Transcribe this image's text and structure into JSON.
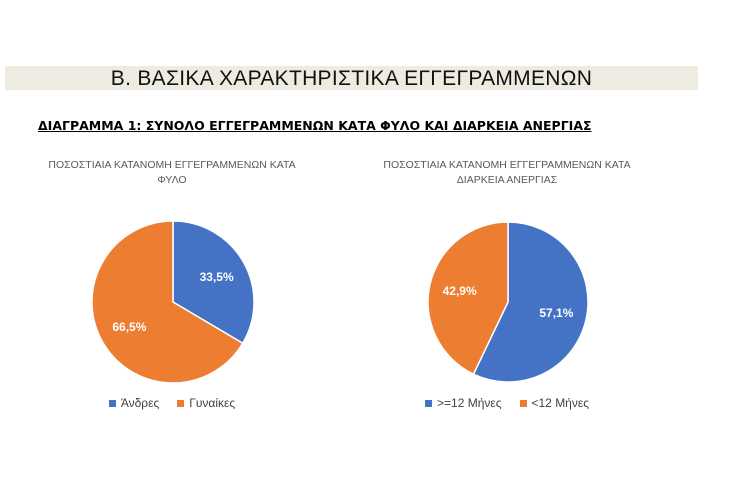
{
  "header": {
    "section_title": "Β.  ΒΑΣΙΚΑ ΧΑΡΑΚΤΗΡΙΣΤΙΚΑ ΕΓΓΕΓΡΑΜΜΕΝΩΝ",
    "diagram_heading": "ΔΙΑΓΡΑΜΜΑ 1: ΣΥΝΟΛΟ ΕΓΓΕΓΡΑΜΜΕΝΩΝ ΚΑΤΑ ΦΥΛΟ ΚΑΙ ΔΙΑΡΚΕΙΑ ΑΝΕΡΓΙΑΣ"
  },
  "chart_data": [
    {
      "type": "pie",
      "title_lines": [
        "ΠΟΣΟΣΤΙΑΙΑ ΚΑΤΑΝΟΜΗ ΕΓΓΕΓΡΑΜΜΕΝΩΝ ΚΑΤΑ",
        "ΦΥΛΟ"
      ],
      "categories": [
        "Άνδρες",
        "Γυναίκες"
      ],
      "values": [
        33.5,
        66.5
      ],
      "labels": [
        "33,5%",
        "66,5%"
      ],
      "colors": [
        "#4472c4",
        "#ed7d31"
      ],
      "start_angle": "12 o'clock, clockwise",
      "legend": "bottom"
    },
    {
      "type": "pie",
      "title_lines": [
        "ΠΟΣΟΣΤΙΑΙΑ ΚΑΤΑΝΟΜΗ ΕΓΓΕΓΡΑΜΜΕΝΩΝ ΚΑΤΑ",
        "ΔΙΑΡΚΕΙΑ ΑΝΕΡΓΙΑΣ"
      ],
      "categories": [
        ">=12 Μήνες",
        "<12 Μήνες"
      ],
      "values": [
        57.1,
        42.9
      ],
      "labels": [
        "57,1%",
        "42,9%"
      ],
      "colors": [
        "#4472c4",
        "#ed7d31"
      ],
      "start_angle": "12 o'clock, clockwise",
      "legend": "bottom"
    }
  ]
}
